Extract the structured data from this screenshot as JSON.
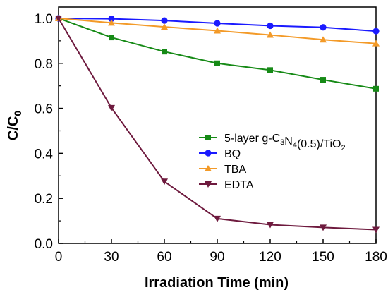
{
  "chart_data": {
    "type": "line",
    "xlabel": "Irradiation Time (min)",
    "ylabel": {
      "main": "C/C",
      "sub": "0"
    },
    "xlim": [
      0,
      180
    ],
    "ylim": [
      0,
      1.05
    ],
    "xticks": [
      0,
      30,
      60,
      90,
      120,
      150,
      180
    ],
    "yticks": [
      0.0,
      0.2,
      0.4,
      0.6,
      0.8,
      1.0
    ],
    "xtick_labels": [
      "0",
      "30",
      "60",
      "90",
      "120",
      "150",
      "180"
    ],
    "ytick_labels": [
      "0.0",
      "0.2",
      "0.4",
      "0.6",
      "0.8",
      "1.0"
    ],
    "grid": false,
    "legend_position": "center-right",
    "x": [
      0,
      30,
      60,
      90,
      120,
      150,
      180
    ],
    "series": [
      {
        "name": "5-layer g-C3N4(0.5)/TiO2",
        "legend_parts": [
          {
            "t": "5-layer  g-C",
            "s": ""
          },
          {
            "t": "3",
            "s": "sub"
          },
          {
            "t": "N",
            "s": ""
          },
          {
            "t": "4",
            "s": "sub"
          },
          {
            "t": "(0.5)/TiO",
            "s": ""
          },
          {
            "t": "2",
            "s": "sub"
          }
        ],
        "color": "#168a16",
        "marker": "square",
        "values": [
          1.0,
          0.915,
          0.852,
          0.8,
          0.77,
          0.727,
          0.687
        ]
      },
      {
        "name": "BQ",
        "legend_parts": [
          {
            "t": "BQ",
            "s": ""
          }
        ],
        "color": "#1a1aff",
        "marker": "circle",
        "values": [
          1.0,
          0.998,
          0.99,
          0.978,
          0.967,
          0.96,
          0.943
        ]
      },
      {
        "name": "TBA",
        "legend_parts": [
          {
            "t": "TBA",
            "s": ""
          }
        ],
        "color": "#f39a28",
        "marker": "triangle-up",
        "values": [
          1.0,
          0.98,
          0.962,
          0.945,
          0.926,
          0.905,
          0.888
        ]
      },
      {
        "name": "EDTA",
        "legend_parts": [
          {
            "t": "EDTA",
            "s": ""
          }
        ],
        "color": "#6e1a3e",
        "marker": "triangle-down",
        "values": [
          1.0,
          0.602,
          0.275,
          0.11,
          0.083,
          0.071,
          0.061
        ]
      }
    ]
  }
}
